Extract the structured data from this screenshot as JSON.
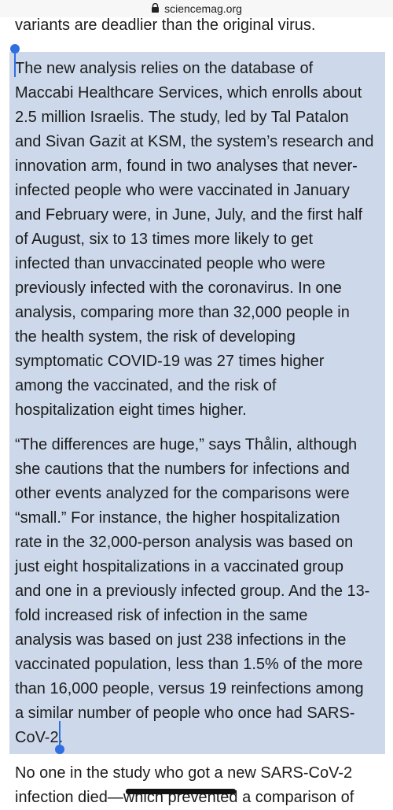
{
  "browser": {
    "url": "sciencemag.org",
    "lock_icon": "lock-icon"
  },
  "article": {
    "top_fragment": "variants are deadlier than the original virus.",
    "paragraph1_lines": [
      "The new analysis relies on the database of",
      "Maccabi Healthcare Services, which enrolls about",
      "2.5 million Israelis. The study, led by Tal Patalon",
      "and Sivan Gazit at KSM, the system’s research and",
      "innovation arm, found in two analyses that never-",
      "infected people who were vaccinated in January",
      "and February were, in June, July, and the first half",
      "of August, six to 13 times more likely to get",
      "infected than unvaccinated people who were",
      "previously infected with the coronavirus. In one",
      "analysis, comparing more than 32,000 people in",
      "the health system, the risk of developing",
      "symptomatic COVID-19 was 27 times higher",
      "among the vaccinated, and the risk of",
      "hospitalization eight times higher."
    ],
    "paragraph2_lines": [
      "“The differences are huge,” says Thålin, although",
      "she cautions that the numbers for infections and",
      "other events analyzed for the comparisons were",
      "“small.” For instance, the higher hospitalization",
      "rate in the 32,000-person analysis was based on",
      "just eight hospitalizations in a vaccinated group",
      "and one in a previously infected group. And the 13-",
      "fold increased risk of infection in the same",
      "analysis was based on just 238 infections in the",
      "vaccinated population, less than 1.5% of the more",
      "than 16,000 people, versus 19 reinfections among",
      "a similar number of people who once had SARS-",
      "CoV-2."
    ],
    "paragraph3_lines": [
      "No one in the study who got a new SARS-CoV-2",
      "infection died—which prevented a comparison of"
    ]
  },
  "colors": {
    "selection": "#cdd9ea",
    "handle": "#2f6fe0"
  }
}
